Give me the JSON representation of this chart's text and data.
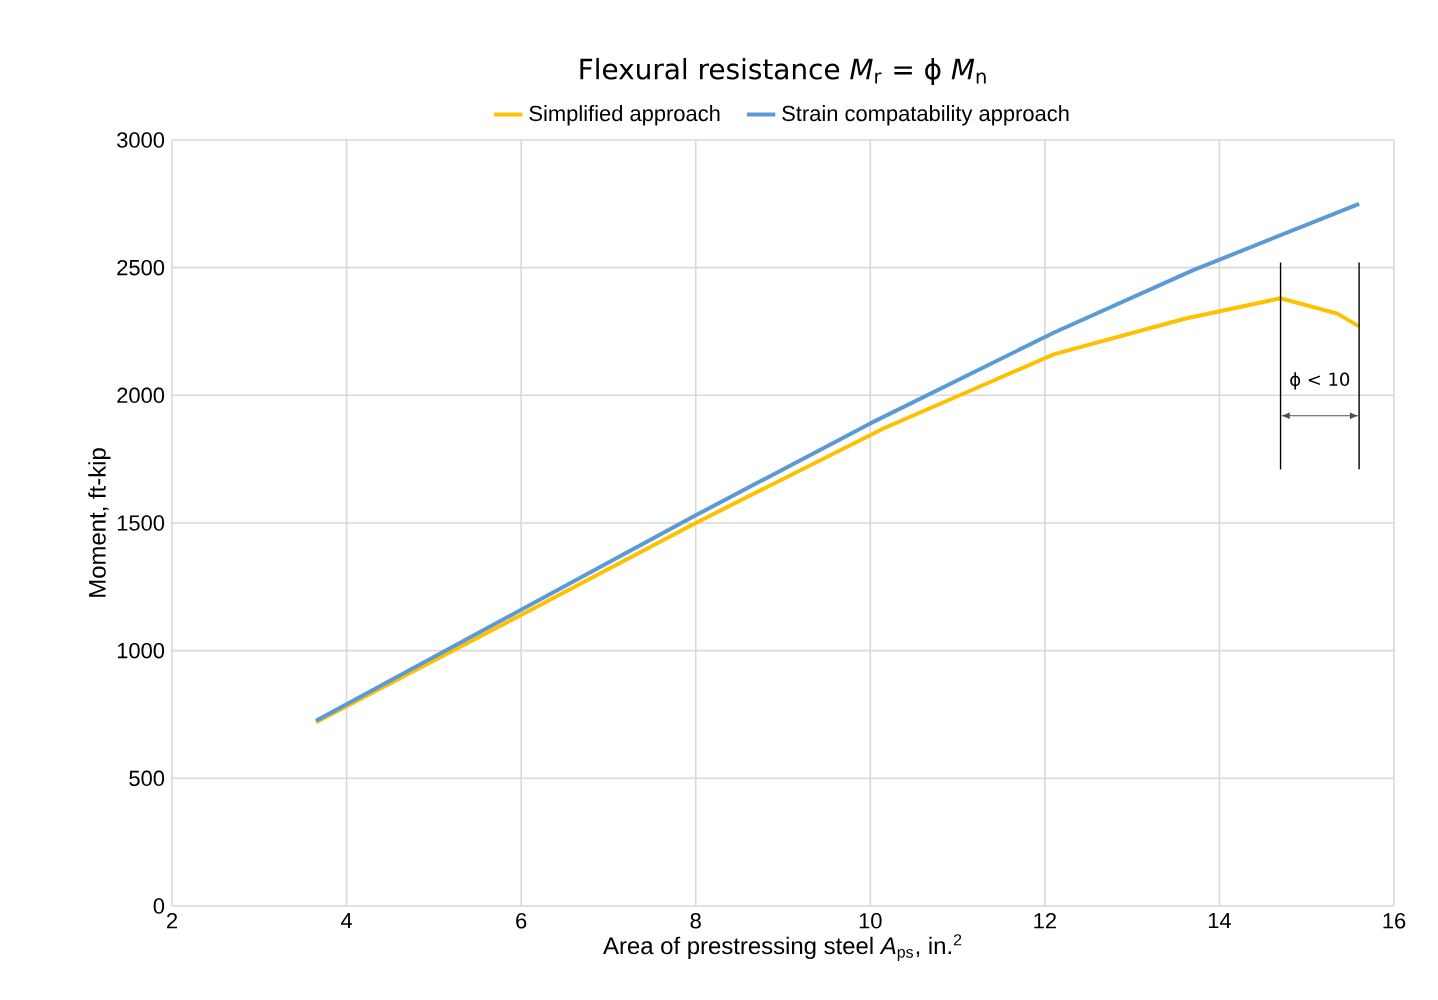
{
  "chart_data": {
    "type": "line",
    "title": "Flexural resistance *M*$_{r}$ =  ϕ *M*$_{n}$",
    "xlabel": "Area of prestressing steel *A*$_{ps}$, in.$^{2}$",
    "ylabel": "Moment, ft-kip",
    "xlim": [
      2,
      16
    ],
    "xticks": [
      2,
      4,
      6,
      8,
      10,
      12,
      14,
      16
    ],
    "ylim": [
      0,
      3000
    ],
    "yticks": [
      0,
      500,
      1000,
      1500,
      2000,
      2500,
      3000
    ],
    "grid": true,
    "legend": "top",
    "marker": "none",
    "line_style": "solid",
    "series": [
      {
        "name": "Simplified approach",
        "color": "#ffc000",
        "x": [
          3.65,
          6,
          8,
          10.15,
          12.1,
          13.6,
          14.7,
          15.35,
          15.6
        ],
        "values": [
          720,
          1140,
          1500,
          1870,
          2160,
          2300,
          2380,
          2320,
          2270
        ]
      },
      {
        "name": "Strain compatability approach",
        "color": "#5b9bd5",
        "x": [
          3.65,
          6,
          8,
          10,
          12.1,
          13.7,
          15.6
        ],
        "values": [
          725,
          1160,
          1530,
          1890,
          2245,
          2490,
          2750
        ]
      }
    ],
    "ref_lines": [
      {
        "axis": "x",
        "value": 14.7,
        "color": "#000000"
      },
      {
        "axis": "x",
        "value": 15.6,
        "color": "#000000"
      }
    ],
    "annotations": [
      "ϕ < 10"
    ]
  }
}
